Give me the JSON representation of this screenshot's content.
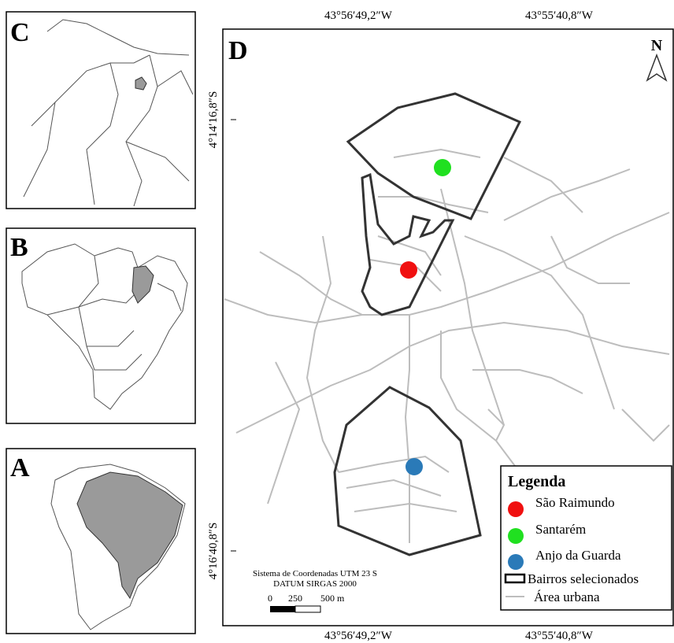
{
  "panels": {
    "c": "C",
    "b": "B",
    "a": "A",
    "d": "D"
  },
  "coordinates": {
    "top_left": "43°56′49,2″W",
    "top_right": "43°55′40,8″W",
    "bottom_left": "43°56′49,2″W",
    "bottom_right": "43°55′40,8″W",
    "left_top": "4°14′16,8″S",
    "left_bottom": "4°16′40,8″S"
  },
  "north": "N",
  "scale": {
    "system": "Sistema de Coordenadas UTM 23 S",
    "datum": "DATUM SIRGAS 2000",
    "label_0": "0",
    "label_250": "250",
    "label_500": "500 m"
  },
  "legend": {
    "title": "Legenda",
    "items": [
      {
        "label": "São Raimundo",
        "color": "#f01010"
      },
      {
        "label": "Santarém",
        "color": "#20e020"
      },
      {
        "label": "Anjo da Guarda",
        "color": "#2a7ab8"
      },
      {
        "label": "Bairros selecionados"
      },
      {
        "label": "Área urbana"
      }
    ]
  }
}
